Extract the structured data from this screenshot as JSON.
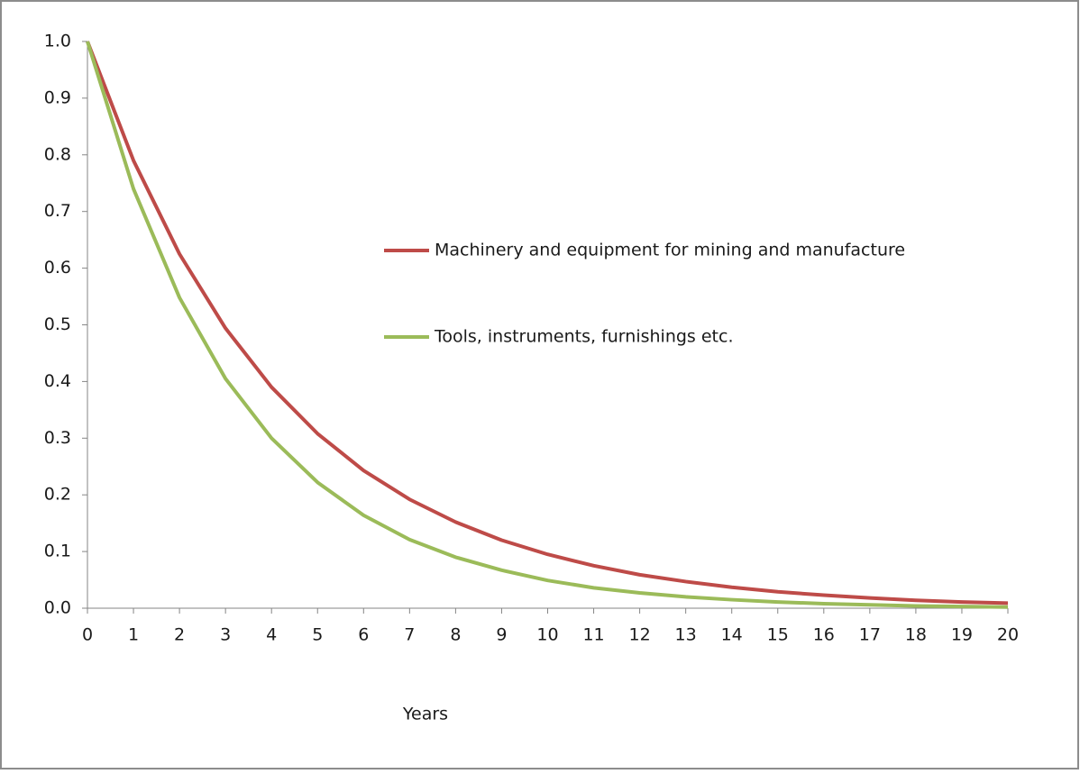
{
  "chart_data": {
    "type": "line",
    "x_label": "Years",
    "x": [
      0,
      1,
      2,
      3,
      4,
      5,
      6,
      7,
      8,
      9,
      10,
      11,
      12,
      13,
      14,
      15,
      16,
      17,
      18,
      19,
      20
    ],
    "xlim": [
      0,
      20
    ],
    "xticks": [
      0,
      1,
      2,
      3,
      4,
      5,
      6,
      7,
      8,
      9,
      10,
      11,
      12,
      13,
      14,
      15,
      16,
      17,
      18,
      19,
      20
    ],
    "ylim": [
      0,
      1
    ],
    "yticks": [
      {
        "value": 0,
        "label": "0.0"
      },
      0.1,
      0.2,
      0.3,
      0.4,
      0.5,
      0.6,
      0.7,
      0.8,
      0.9,
      {
        "value": 1,
        "label": "1.0"
      }
    ],
    "grid": false,
    "legend": "center",
    "series": [
      {
        "name": "Machinery and equipment for mining and manufacture",
        "color": "#be4b48",
        "values": [
          1,
          0.79,
          0.625,
          0.494,
          0.39,
          0.308,
          0.243,
          0.192,
          0.152,
          0.12,
          0.095,
          0.075,
          0.059,
          0.047,
          0.037,
          0.029,
          0.023,
          0.018,
          0.014,
          0.011,
          0.009
        ]
      },
      {
        "name": "Tools, instruments, furnishings etc.",
        "color": "#9bbb59",
        "values": [
          1,
          0.74,
          0.548,
          0.405,
          0.3,
          0.222,
          0.164,
          0.121,
          0.09,
          0.067,
          0.049,
          0.036,
          0.027,
          0.02,
          0.015,
          0.011,
          0.008,
          0.006,
          0.004,
          0.003,
          0.002
        ]
      }
    ]
  }
}
